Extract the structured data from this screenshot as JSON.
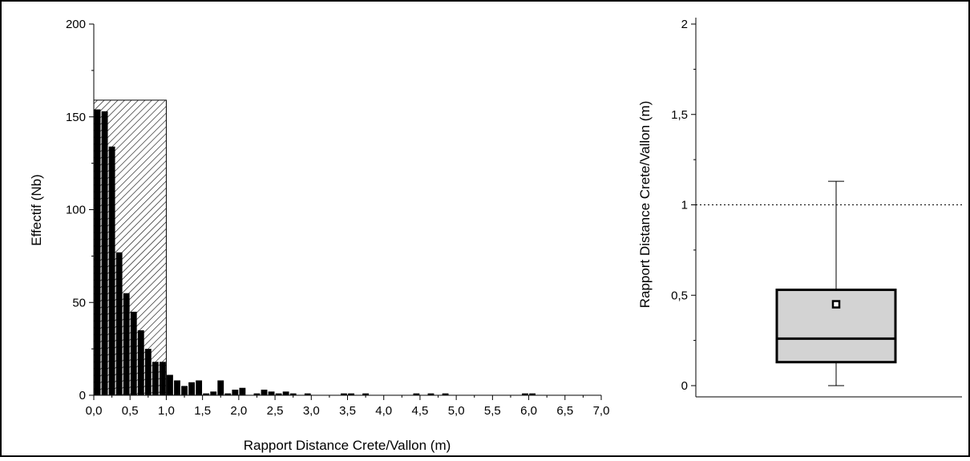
{
  "chart_data": [
    {
      "type": "bar",
      "xlabel": "Rapport Distance Crete/Vallon (m)",
      "ylabel": "Effectif (Nb)",
      "xlim": [
        0,
        7.0
      ],
      "ylim": [
        0,
        200
      ],
      "x_tick_labels": [
        "0,0",
        "0,5",
        "1,0",
        "1,5",
        "2,0",
        "2,5",
        "3,0",
        "3,5",
        "4,0",
        "4,5",
        "5,0",
        "5,5",
        "6,0",
        "6,5",
        "7,0"
      ],
      "y_tick_labels": [
        "0",
        "50",
        "100",
        "150",
        "200"
      ],
      "bin_width": 0.1,
      "bars": [
        {
          "x": 0.05,
          "value": 154
        },
        {
          "x": 0.15,
          "value": 153
        },
        {
          "x": 0.25,
          "value": 134
        },
        {
          "x": 0.35,
          "value": 77
        },
        {
          "x": 0.45,
          "value": 55
        },
        {
          "x": 0.55,
          "value": 45
        },
        {
          "x": 0.65,
          "value": 35
        },
        {
          "x": 0.75,
          "value": 25
        },
        {
          "x": 0.85,
          "value": 18
        },
        {
          "x": 0.95,
          "value": 18
        },
        {
          "x": 1.05,
          "value": 11
        },
        {
          "x": 1.15,
          "value": 8
        },
        {
          "x": 1.25,
          "value": 5
        },
        {
          "x": 1.35,
          "value": 7
        },
        {
          "x": 1.45,
          "value": 8
        },
        {
          "x": 1.55,
          "value": 1
        },
        {
          "x": 1.65,
          "value": 2
        },
        {
          "x": 1.75,
          "value": 8
        },
        {
          "x": 1.85,
          "value": 1
        },
        {
          "x": 1.95,
          "value": 3
        },
        {
          "x": 2.05,
          "value": 4
        },
        {
          "x": 2.25,
          "value": 1
        },
        {
          "x": 2.35,
          "value": 3
        },
        {
          "x": 2.45,
          "value": 2
        },
        {
          "x": 2.55,
          "value": 1
        },
        {
          "x": 2.65,
          "value": 2
        },
        {
          "x": 2.75,
          "value": 1
        },
        {
          "x": 2.95,
          "value": 1
        },
        {
          "x": 3.45,
          "value": 1
        },
        {
          "x": 3.55,
          "value": 1
        },
        {
          "x": 3.75,
          "value": 1
        },
        {
          "x": 4.45,
          "value": 1
        },
        {
          "x": 4.65,
          "value": 1
        },
        {
          "x": 4.85,
          "value": 1
        },
        {
          "x": 5.95,
          "value": 1
        },
        {
          "x": 6.05,
          "value": 1
        }
      ],
      "highlight_region": {
        "x_range": [
          0,
          1.0
        ],
        "y_top": 159,
        "pattern": "diagonal-hatch"
      },
      "colors": {
        "bars": "#000000",
        "hatch": "#000000"
      }
    },
    {
      "type": "box",
      "ylabel": "Rapport Distance Crete/Vallon (m)",
      "ylim": [
        0,
        2
      ],
      "y_tick_labels": [
        "0",
        "0,5",
        "1",
        "1,5",
        "2"
      ],
      "box": {
        "whisker_low": 0,
        "q1": 0.13,
        "median": 0.26,
        "q3": 0.53,
        "whisker_high": 1.13,
        "mean": 0.45
      },
      "reference_line": {
        "y": 1,
        "style": "dotted"
      },
      "colors": {
        "box_fill": "#d3d3d3",
        "box_stroke": "#000000"
      }
    }
  ]
}
